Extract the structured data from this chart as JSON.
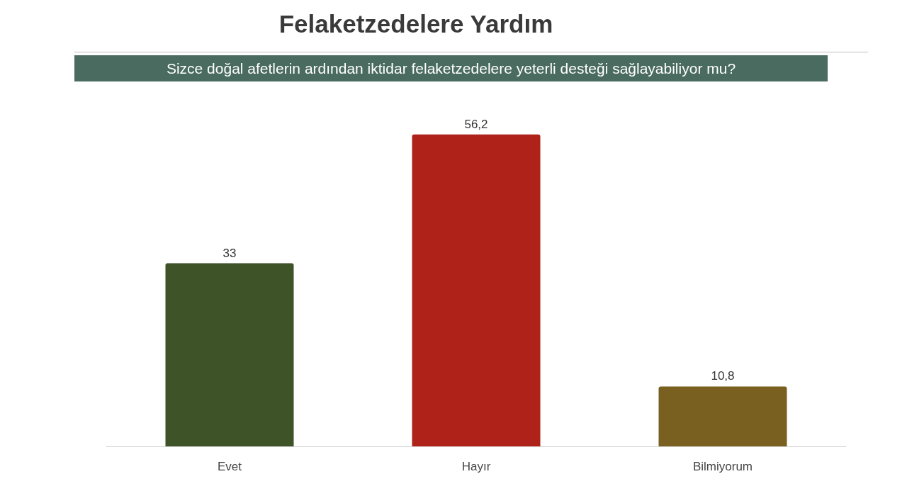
{
  "chart_data": {
    "type": "bar",
    "title": "Felaketzedelere Yardım",
    "subtitle": "Sizce doğal afetlerin ardından iktidar felaketzedelere yeterli desteği sağlayabiliyor mu?",
    "categories": [
      "Evet",
      "Hayır",
      "Bilmiyorum"
    ],
    "values": [
      33,
      56.2,
      10.8
    ],
    "colors": [
      "#3f5329",
      "#ae2219",
      "#7a6020"
    ],
    "value_labels": [
      "33",
      "56,2",
      "10,8"
    ],
    "tick_labels": "x"
  }
}
